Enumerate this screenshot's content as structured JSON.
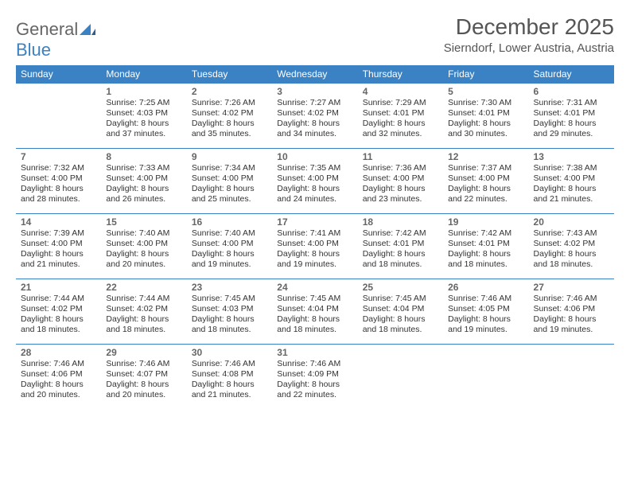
{
  "logo": {
    "general": "General",
    "blue": "Blue"
  },
  "header": {
    "title": "December 2025",
    "location": "Sierndorf, Lower Austria, Austria"
  },
  "colors": {
    "header_bg": "#3b82c4",
    "header_text": "#ffffff",
    "border": "#3b82c4",
    "daynum": "#666666",
    "body_text": "#333333",
    "logo_gray": "#666666",
    "logo_blue": "#3b82c4",
    "background": "#ffffff"
  },
  "day_headers": [
    "Sunday",
    "Monday",
    "Tuesday",
    "Wednesday",
    "Thursday",
    "Friday",
    "Saturday"
  ],
  "weeks": [
    [
      {
        "num": "",
        "sunrise": "",
        "sunset": "",
        "daylight": ""
      },
      {
        "num": "1",
        "sunrise": "Sunrise: 7:25 AM",
        "sunset": "Sunset: 4:03 PM",
        "daylight": "Daylight: 8 hours and 37 minutes."
      },
      {
        "num": "2",
        "sunrise": "Sunrise: 7:26 AM",
        "sunset": "Sunset: 4:02 PM",
        "daylight": "Daylight: 8 hours and 35 minutes."
      },
      {
        "num": "3",
        "sunrise": "Sunrise: 7:27 AM",
        "sunset": "Sunset: 4:02 PM",
        "daylight": "Daylight: 8 hours and 34 minutes."
      },
      {
        "num": "4",
        "sunrise": "Sunrise: 7:29 AM",
        "sunset": "Sunset: 4:01 PM",
        "daylight": "Daylight: 8 hours and 32 minutes."
      },
      {
        "num": "5",
        "sunrise": "Sunrise: 7:30 AM",
        "sunset": "Sunset: 4:01 PM",
        "daylight": "Daylight: 8 hours and 30 minutes."
      },
      {
        "num": "6",
        "sunrise": "Sunrise: 7:31 AM",
        "sunset": "Sunset: 4:01 PM",
        "daylight": "Daylight: 8 hours and 29 minutes."
      }
    ],
    [
      {
        "num": "7",
        "sunrise": "Sunrise: 7:32 AM",
        "sunset": "Sunset: 4:00 PM",
        "daylight": "Daylight: 8 hours and 28 minutes."
      },
      {
        "num": "8",
        "sunrise": "Sunrise: 7:33 AM",
        "sunset": "Sunset: 4:00 PM",
        "daylight": "Daylight: 8 hours and 26 minutes."
      },
      {
        "num": "9",
        "sunrise": "Sunrise: 7:34 AM",
        "sunset": "Sunset: 4:00 PM",
        "daylight": "Daylight: 8 hours and 25 minutes."
      },
      {
        "num": "10",
        "sunrise": "Sunrise: 7:35 AM",
        "sunset": "Sunset: 4:00 PM",
        "daylight": "Daylight: 8 hours and 24 minutes."
      },
      {
        "num": "11",
        "sunrise": "Sunrise: 7:36 AM",
        "sunset": "Sunset: 4:00 PM",
        "daylight": "Daylight: 8 hours and 23 minutes."
      },
      {
        "num": "12",
        "sunrise": "Sunrise: 7:37 AM",
        "sunset": "Sunset: 4:00 PM",
        "daylight": "Daylight: 8 hours and 22 minutes."
      },
      {
        "num": "13",
        "sunrise": "Sunrise: 7:38 AM",
        "sunset": "Sunset: 4:00 PM",
        "daylight": "Daylight: 8 hours and 21 minutes."
      }
    ],
    [
      {
        "num": "14",
        "sunrise": "Sunrise: 7:39 AM",
        "sunset": "Sunset: 4:00 PM",
        "daylight": "Daylight: 8 hours and 21 minutes."
      },
      {
        "num": "15",
        "sunrise": "Sunrise: 7:40 AM",
        "sunset": "Sunset: 4:00 PM",
        "daylight": "Daylight: 8 hours and 20 minutes."
      },
      {
        "num": "16",
        "sunrise": "Sunrise: 7:40 AM",
        "sunset": "Sunset: 4:00 PM",
        "daylight": "Daylight: 8 hours and 19 minutes."
      },
      {
        "num": "17",
        "sunrise": "Sunrise: 7:41 AM",
        "sunset": "Sunset: 4:00 PM",
        "daylight": "Daylight: 8 hours and 19 minutes."
      },
      {
        "num": "18",
        "sunrise": "Sunrise: 7:42 AM",
        "sunset": "Sunset: 4:01 PM",
        "daylight": "Daylight: 8 hours and 18 minutes."
      },
      {
        "num": "19",
        "sunrise": "Sunrise: 7:42 AM",
        "sunset": "Sunset: 4:01 PM",
        "daylight": "Daylight: 8 hours and 18 minutes."
      },
      {
        "num": "20",
        "sunrise": "Sunrise: 7:43 AM",
        "sunset": "Sunset: 4:02 PM",
        "daylight": "Daylight: 8 hours and 18 minutes."
      }
    ],
    [
      {
        "num": "21",
        "sunrise": "Sunrise: 7:44 AM",
        "sunset": "Sunset: 4:02 PM",
        "daylight": "Daylight: 8 hours and 18 minutes."
      },
      {
        "num": "22",
        "sunrise": "Sunrise: 7:44 AM",
        "sunset": "Sunset: 4:02 PM",
        "daylight": "Daylight: 8 hours and 18 minutes."
      },
      {
        "num": "23",
        "sunrise": "Sunrise: 7:45 AM",
        "sunset": "Sunset: 4:03 PM",
        "daylight": "Daylight: 8 hours and 18 minutes."
      },
      {
        "num": "24",
        "sunrise": "Sunrise: 7:45 AM",
        "sunset": "Sunset: 4:04 PM",
        "daylight": "Daylight: 8 hours and 18 minutes."
      },
      {
        "num": "25",
        "sunrise": "Sunrise: 7:45 AM",
        "sunset": "Sunset: 4:04 PM",
        "daylight": "Daylight: 8 hours and 18 minutes."
      },
      {
        "num": "26",
        "sunrise": "Sunrise: 7:46 AM",
        "sunset": "Sunset: 4:05 PM",
        "daylight": "Daylight: 8 hours and 19 minutes."
      },
      {
        "num": "27",
        "sunrise": "Sunrise: 7:46 AM",
        "sunset": "Sunset: 4:06 PM",
        "daylight": "Daylight: 8 hours and 19 minutes."
      }
    ],
    [
      {
        "num": "28",
        "sunrise": "Sunrise: 7:46 AM",
        "sunset": "Sunset: 4:06 PM",
        "daylight": "Daylight: 8 hours and 20 minutes."
      },
      {
        "num": "29",
        "sunrise": "Sunrise: 7:46 AM",
        "sunset": "Sunset: 4:07 PM",
        "daylight": "Daylight: 8 hours and 20 minutes."
      },
      {
        "num": "30",
        "sunrise": "Sunrise: 7:46 AM",
        "sunset": "Sunset: 4:08 PM",
        "daylight": "Daylight: 8 hours and 21 minutes."
      },
      {
        "num": "31",
        "sunrise": "Sunrise: 7:46 AM",
        "sunset": "Sunset: 4:09 PM",
        "daylight": "Daylight: 8 hours and 22 minutes."
      },
      {
        "num": "",
        "sunrise": "",
        "sunset": "",
        "daylight": ""
      },
      {
        "num": "",
        "sunrise": "",
        "sunset": "",
        "daylight": ""
      },
      {
        "num": "",
        "sunrise": "",
        "sunset": "",
        "daylight": ""
      }
    ]
  ]
}
